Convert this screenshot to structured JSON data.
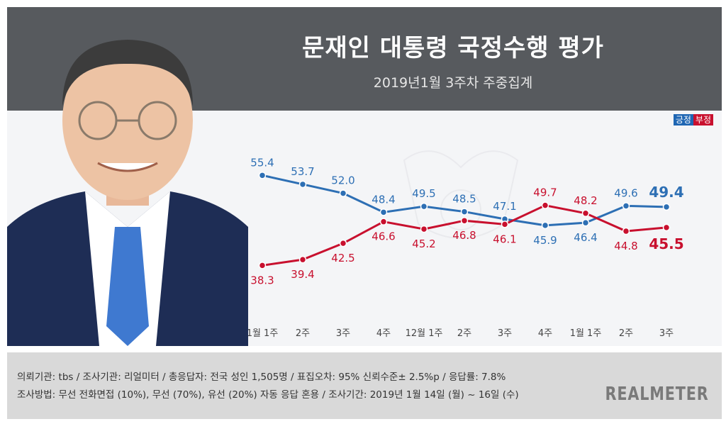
{
  "chart_data": {
    "type": "line",
    "title": "문재인 대통령 국정수행 평가",
    "subtitle": "2019년1월 3주차 주중집계",
    "categories": [
      "1월 1주",
      "2주",
      "3주",
      "4주",
      "12월 1주",
      "2주",
      "3주",
      "4주",
      "1월 1주",
      "2주",
      "3주"
    ],
    "series": [
      {
        "name": "긍정",
        "color": "#2d6fb4",
        "values": [
          55.4,
          53.7,
          52.0,
          48.4,
          49.5,
          48.5,
          47.1,
          45.9,
          46.4,
          49.6,
          49.4
        ]
      },
      {
        "name": "부정",
        "color": "#c8102e",
        "values": [
          38.3,
          39.4,
          42.5,
          46.6,
          45.2,
          46.8,
          46.1,
          49.7,
          48.2,
          44.8,
          45.5
        ]
      }
    ],
    "label_positions": {
      "긍정": [
        "above",
        "above",
        "above",
        "above",
        "above",
        "above",
        "above",
        "below",
        "below",
        "above",
        "above"
      ],
      "부정": [
        "below",
        "below",
        "below",
        "below",
        "below",
        "below",
        "below",
        "above",
        "above",
        "below",
        "below"
      ]
    },
    "ylim": [
      30,
      65
    ],
    "grid": false,
    "legend": "top-right"
  },
  "legend": {
    "positive": "긍정",
    "negative": "부정"
  },
  "footer": {
    "line1": "의뢰기관: tbs / 조사기관: 리얼미터 / 총응답자: 전국 성인 1,505명 / 표집오차: 95% 신뢰수준± 2.5%p / 응답률: 7.8%",
    "line2": "조사방법: 무선 전화면접 (10%), 무선 (70%), 유선 (20%) 자동 응답 혼용 / 조사기간: 2019년 1월 14일 (월) ~ 16일 (수)",
    "brand": "REALMETER"
  },
  "colors": {
    "positive": "#2d6fb4",
    "negative": "#c8102e",
    "header": "#575a5e"
  }
}
